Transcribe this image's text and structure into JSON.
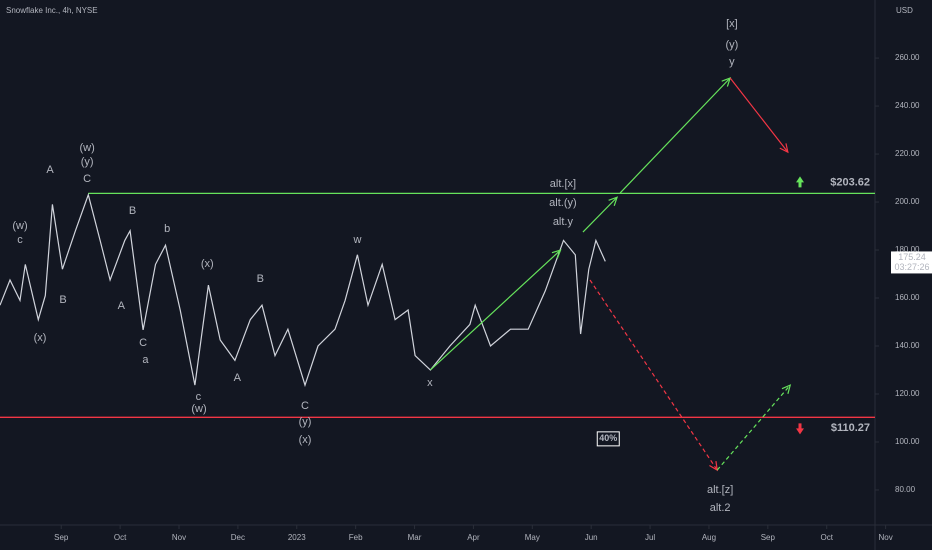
{
  "chart_data": {
    "type": "line",
    "title": "Snowflake Inc., 4h, NYSE",
    "y_label": "USD",
    "xlim": [
      -1.04,
      13.82
    ],
    "xticks": [
      {
        "value": 0,
        "label": "Sep"
      },
      {
        "value": 1,
        "label": "Oct"
      },
      {
        "value": 2,
        "label": "Nov"
      },
      {
        "value": 3,
        "label": "Dec"
      },
      {
        "value": 4,
        "label": "2023"
      },
      {
        "value": 5,
        "label": "Feb"
      },
      {
        "value": 6,
        "label": "Mar"
      },
      {
        "value": 7,
        "label": "Apr"
      },
      {
        "value": 8,
        "label": "May"
      },
      {
        "value": 9,
        "label": "Jun"
      },
      {
        "value": 10,
        "label": "Jul"
      },
      {
        "value": 11,
        "label": "Aug"
      },
      {
        "value": 12,
        "label": "Sep"
      },
      {
        "value": 13,
        "label": "Oct"
      },
      {
        "value": 14,
        "label": "Nov"
      }
    ],
    "ylim": [
      65.4,
      284.2
    ],
    "yticks": [
      {
        "value": 80,
        "label": "80.00"
      },
      {
        "value": 100,
        "label": "100.00"
      },
      {
        "value": 120,
        "label": "120.00"
      },
      {
        "value": 140,
        "label": "140.00"
      },
      {
        "value": 160,
        "label": "160.00"
      },
      {
        "value": 180,
        "label": "180.00"
      },
      {
        "value": 200,
        "label": "200.00"
      },
      {
        "value": 220,
        "label": "220.00"
      },
      {
        "value": 240,
        "label": "240.00"
      },
      {
        "value": 260,
        "label": "260.00"
      }
    ],
    "grid": false,
    "series": [
      {
        "color": "#d1d4dc",
        "x": [
          -1.04,
          -0.87,
          -0.7,
          -0.61,
          -0.39,
          -0.27,
          -0.15,
          0.02,
          0.24,
          0.46,
          0.66,
          0.83,
          1.08,
          1.17,
          1.39,
          1.6,
          1.77,
          2.02,
          2.27,
          2.5,
          2.7,
          2.95,
          3.21,
          3.41,
          3.63,
          3.85,
          4.14,
          4.36,
          4.65,
          4.82,
          5.03,
          5.21,
          5.45,
          5.67,
          5.89,
          6.01,
          6.27,
          6.6,
          6.94,
          7.03,
          7.29,
          7.63,
          7.93,
          8.22,
          8.53,
          8.73,
          8.82,
          8.96,
          9.08,
          9.24
        ],
        "values": [
          157,
          167.5,
          159,
          174,
          151,
          161,
          199,
          172,
          188,
          203,
          184,
          167.5,
          184,
          188,
          146.7,
          174,
          182,
          155,
          123.7,
          165.4,
          142.5,
          134,
          151,
          157,
          136,
          147,
          123.7,
          140,
          147,
          159,
          178,
          157,
          174,
          151,
          155,
          136,
          130,
          140,
          149,
          157,
          140,
          147,
          147,
          163,
          184,
          178,
          145,
          172,
          184,
          175.24
        ]
      }
    ],
    "last_time": "03:27:26",
    "levels": [
      {
        "value": 203.62,
        "label": "$203.62",
        "color": "#66e35c",
        "x_start": 0.46
      },
      {
        "value": 110.27,
        "label": "$110.27",
        "color": "#f23645",
        "x_start": -1.04
      }
    ],
    "projections": [
      {
        "x": [
          6.27,
          8.48
        ],
        "y": [
          130,
          180
        ],
        "color": "#66e35c",
        "dashed": false
      },
      {
        "x": [
          8.86,
          9.44
        ],
        "y": [
          187.5,
          202
        ],
        "color": "#66e35c",
        "dashed": false
      },
      {
        "x": [
          9.49,
          11.36
        ],
        "y": [
          203.75,
          251.7
        ],
        "color": "#66e35c",
        "dashed": false
      },
      {
        "x": [
          11.36,
          12.34
        ],
        "y": [
          251.7,
          220.8
        ],
        "color": "#f23645",
        "dashed": false
      },
      {
        "x": [
          8.98,
          11.14
        ],
        "y": [
          167.5,
          88.3
        ],
        "color": "#f23645",
        "dashed": true
      },
      {
        "x": [
          11.14,
          12.38
        ],
        "y": [
          88.3,
          123.7
        ],
        "color": "#66e35c",
        "dashed": true
      }
    ],
    "annotations": [
      {
        "text": "(w)",
        "x": -0.7,
        "y": 190,
        "color": "#ff9800"
      },
      {
        "text": "c",
        "x": -0.7,
        "y": 184.2,
        "color": "#ff9800"
      },
      {
        "text": "(x)",
        "x": -0.36,
        "y": 143.3,
        "color": "#ff9800"
      },
      {
        "text": "B",
        "x": 0.03,
        "y": 159.2,
        "color": "#66e35c"
      },
      {
        "text": "A",
        "x": -0.19,
        "y": 213.3,
        "color": "#66e35c"
      },
      {
        "text": "(w)",
        "x": 0.44,
        "y": 222.5,
        "color": "#5b7bd5"
      },
      {
        "text": "(y)",
        "x": 0.44,
        "y": 216.7,
        "color": "#ff9800"
      },
      {
        "text": "C",
        "x": 0.44,
        "y": 209.6,
        "color": "#66e35c"
      },
      {
        "text": "B",
        "x": 1.21,
        "y": 196.3,
        "color": "#66e35c"
      },
      {
        "text": "A",
        "x": 1.02,
        "y": 156.7,
        "color": "#66e35c"
      },
      {
        "text": "C",
        "x": 1.39,
        "y": 141.3,
        "color": "#66e35c"
      },
      {
        "text": "a",
        "x": 1.43,
        "y": 134.2,
        "color": "#ff9800"
      },
      {
        "text": "b",
        "x": 1.8,
        "y": 188.8,
        "color": "#ff9800"
      },
      {
        "text": "(x)",
        "x": 2.48,
        "y": 174.2,
        "color": "#ff9800"
      },
      {
        "text": "B",
        "x": 3.38,
        "y": 167.9,
        "color": "#66e35c"
      },
      {
        "text": "c",
        "x": 2.33,
        "y": 118.8,
        "color": "#ff9800"
      },
      {
        "text": "(w)",
        "x": 2.34,
        "y": 113.8,
        "color": "#ff9800"
      },
      {
        "text": "A",
        "x": 2.99,
        "y": 126.7,
        "color": "#66e35c"
      },
      {
        "text": "C",
        "x": 4.14,
        "y": 115,
        "color": "#66e35c"
      },
      {
        "text": "(y)",
        "x": 4.14,
        "y": 108.3,
        "color": "#ff9800"
      },
      {
        "text": "(x)",
        "x": 4.14,
        "y": 100.8,
        "color": "#5b7bd5"
      },
      {
        "text": "w",
        "x": 5.03,
        "y": 184.2,
        "color": "#ff9800"
      },
      {
        "text": "x",
        "x": 6.26,
        "y": 124.6,
        "color": "#ff9800"
      },
      {
        "text": "alt.[x]",
        "x": 8.52,
        "y": 207.5,
        "color": "#e91e63"
      },
      {
        "text": "alt.(y)",
        "x": 8.52,
        "y": 199.6,
        "color": "#5b7bd5"
      },
      {
        "text": "alt.y",
        "x": 8.52,
        "y": 191.7,
        "color": "#ff9800"
      },
      {
        "text": "[x]",
        "x": 11.39,
        "y": 274.2,
        "color": "#e91e63"
      },
      {
        "text": "(y)",
        "x": 11.39,
        "y": 265.4,
        "color": "#5b7bd5"
      },
      {
        "text": "y",
        "x": 11.39,
        "y": 258.3,
        "color": "#ff9800"
      },
      {
        "text": "alt.[z]",
        "x": 11.19,
        "y": 80,
        "color": "#e91e63"
      },
      {
        "text": "alt.2",
        "x": 11.19,
        "y": 72.5,
        "color": "#66e35c"
      }
    ],
    "badge": {
      "text": "40%",
      "x": 9.29,
      "y": 101.3
    }
  }
}
